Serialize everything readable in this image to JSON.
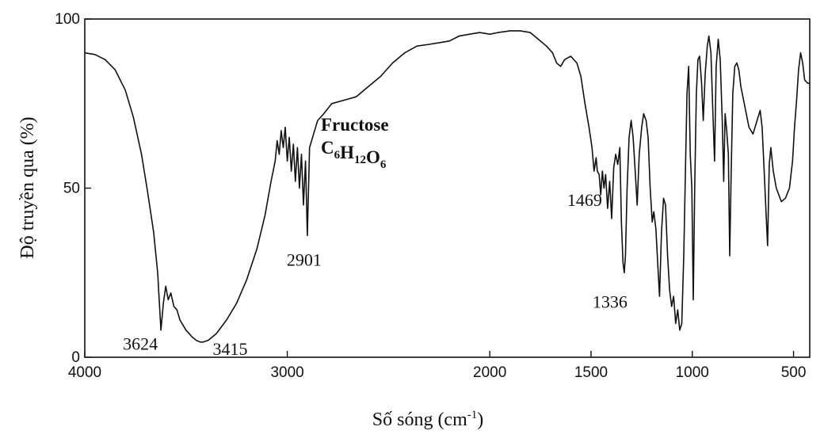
{
  "chart_data": {
    "type": "line",
    "title": "",
    "xlabel": "Số sóng (cm",
    "xlabel_sup": "-1",
    "xlabel_close": ")",
    "ylabel": "Độ truyền qua (%)",
    "xlim": [
      4000,
      420
    ],
    "ylim": [
      0,
      100
    ],
    "grid": false,
    "x_ticks": [
      {
        "value": 4000,
        "label": "4000"
      },
      {
        "value": 3000,
        "label": "3000"
      },
      {
        "value": 2000,
        "label": "2000"
      },
      {
        "value": 1500,
        "label": "1500"
      },
      {
        "value": 1000,
        "label": "1000"
      },
      {
        "value": 500,
        "label": "500"
      }
    ],
    "y_ticks": [
      {
        "value": 100,
        "label": "100"
      },
      {
        "value": 50,
        "label": "50"
      },
      {
        "value": 0,
        "label": "0"
      }
    ],
    "compound": {
      "name": "Fructose",
      "formula": [
        {
          "t": "C",
          "sub": "6"
        },
        {
          "t": "H",
          "sub": "12"
        },
        {
          "t": "O",
          "sub": "6"
        }
      ]
    },
    "annotations": [
      {
        "text": "3624",
        "x": 3624,
        "y": 6
      },
      {
        "text": "3415",
        "x": 3415,
        "y": 4
      },
      {
        "text": "2901",
        "x": 2901,
        "y": 36
      },
      {
        "text": "1469",
        "x": 1469,
        "y": 55
      },
      {
        "text": "1336",
        "x": 1336,
        "y": 25
      }
    ],
    "series": [
      {
        "values": [
          [
            4000,
            90
          ],
          [
            3950,
            89.5
          ],
          [
            3900,
            88
          ],
          [
            3850,
            85
          ],
          [
            3800,
            79
          ],
          [
            3760,
            71
          ],
          [
            3720,
            60
          ],
          [
            3690,
            49
          ],
          [
            3660,
            37
          ],
          [
            3640,
            25
          ],
          [
            3624,
            8
          ],
          [
            3612,
            16
          ],
          [
            3600,
            21
          ],
          [
            3588,
            17
          ],
          [
            3575,
            19
          ],
          [
            3560,
            15
          ],
          [
            3545,
            14
          ],
          [
            3530,
            11
          ],
          [
            3500,
            8
          ],
          [
            3470,
            6
          ],
          [
            3450,
            5
          ],
          [
            3430,
            4.5
          ],
          [
            3415,
            4.5
          ],
          [
            3390,
            5
          ],
          [
            3350,
            7
          ],
          [
            3300,
            11
          ],
          [
            3250,
            16
          ],
          [
            3200,
            23
          ],
          [
            3150,
            32
          ],
          [
            3110,
            42
          ],
          [
            3080,
            52
          ],
          [
            3060,
            58
          ],
          [
            3050,
            64
          ],
          [
            3040,
            60
          ],
          [
            3030,
            67
          ],
          [
            3020,
            62
          ],
          [
            3010,
            68
          ],
          [
            3000,
            58
          ],
          [
            2990,
            65
          ],
          [
            2980,
            55
          ],
          [
            2970,
            63
          ],
          [
            2960,
            52
          ],
          [
            2950,
            62
          ],
          [
            2940,
            50
          ],
          [
            2930,
            60
          ],
          [
            2920,
            45
          ],
          [
            2910,
            58
          ],
          [
            2901,
            36
          ],
          [
            2890,
            62
          ],
          [
            2870,
            66
          ],
          [
            2850,
            70
          ],
          [
            2820,
            72
          ],
          [
            2780,
            75
          ],
          [
            2720,
            76
          ],
          [
            2660,
            77
          ],
          [
            2600,
            80
          ],
          [
            2540,
            83
          ],
          [
            2480,
            87
          ],
          [
            2420,
            90
          ],
          [
            2360,
            92
          ],
          [
            2300,
            92.5
          ],
          [
            2250,
            93
          ],
          [
            2200,
            93.5
          ],
          [
            2150,
            95
          ],
          [
            2100,
            95.5
          ],
          [
            2050,
            96
          ],
          [
            2000,
            95.5
          ],
          [
            1960,
            96
          ],
          [
            1900,
            96.5
          ],
          [
            1850,
            96.5
          ],
          [
            1800,
            96
          ],
          [
            1760,
            94
          ],
          [
            1720,
            92
          ],
          [
            1690,
            90
          ],
          [
            1670,
            87
          ],
          [
            1650,
            86
          ],
          [
            1630,
            88
          ],
          [
            1600,
            89
          ],
          [
            1570,
            87
          ],
          [
            1550,
            83
          ],
          [
            1530,
            75
          ],
          [
            1510,
            68
          ],
          [
            1495,
            62
          ],
          [
            1485,
            55
          ],
          [
            1475,
            59
          ],
          [
            1469,
            55
          ],
          [
            1460,
            54
          ],
          [
            1452,
            48
          ],
          [
            1444,
            55
          ],
          [
            1436,
            50
          ],
          [
            1428,
            54
          ],
          [
            1418,
            44
          ],
          [
            1408,
            52
          ],
          [
            1398,
            41
          ],
          [
            1388,
            56
          ],
          [
            1378,
            60
          ],
          [
            1368,
            57
          ],
          [
            1358,
            62
          ],
          [
            1350,
            40
          ],
          [
            1342,
            28
          ],
          [
            1336,
            25
          ],
          [
            1330,
            30
          ],
          [
            1322,
            50
          ],
          [
            1312,
            65
          ],
          [
            1302,
            70
          ],
          [
            1292,
            65
          ],
          [
            1282,
            55
          ],
          [
            1272,
            45
          ],
          [
            1262,
            60
          ],
          [
            1250,
            68
          ],
          [
            1240,
            72
          ],
          [
            1228,
            70
          ],
          [
            1218,
            65
          ],
          [
            1208,
            50
          ],
          [
            1198,
            40
          ],
          [
            1190,
            43
          ],
          [
            1180,
            38
          ],
          [
            1170,
            27
          ],
          [
            1162,
            18
          ],
          [
            1152,
            37
          ],
          [
            1142,
            47
          ],
          [
            1132,
            45
          ],
          [
            1122,
            30
          ],
          [
            1112,
            20
          ],
          [
            1102,
            15
          ],
          [
            1092,
            18
          ],
          [
            1082,
            10
          ],
          [
            1072,
            14
          ],
          [
            1062,
            8
          ],
          [
            1052,
            10
          ],
          [
            1042,
            30
          ],
          [
            1034,
            55
          ],
          [
            1026,
            78
          ],
          [
            1018,
            86
          ],
          [
            1010,
            60
          ],
          [
            1002,
            50
          ],
          [
            995,
            17
          ],
          [
            988,
            50
          ],
          [
            980,
            78
          ],
          [
            972,
            88
          ],
          [
            964,
            89
          ],
          [
            954,
            81
          ],
          [
            946,
            70
          ],
          [
            936,
            84
          ],
          [
            926,
            92
          ],
          [
            918,
            95
          ],
          [
            908,
            90
          ],
          [
            898,
            72
          ],
          [
            890,
            58
          ],
          [
            882,
            86
          ],
          [
            872,
            94
          ],
          [
            862,
            88
          ],
          [
            852,
            70
          ],
          [
            845,
            52
          ],
          [
            838,
            72
          ],
          [
            830,
            67
          ],
          [
            822,
            60
          ],
          [
            815,
            30
          ],
          [
            808,
            54
          ],
          [
            800,
            78
          ],
          [
            790,
            86
          ],
          [
            780,
            87
          ],
          [
            770,
            85
          ],
          [
            760,
            80
          ],
          [
            740,
            74
          ],
          [
            720,
            68
          ],
          [
            700,
            66
          ],
          [
            680,
            70
          ],
          [
            665,
            73
          ],
          [
            655,
            68
          ],
          [
            645,
            55
          ],
          [
            635,
            42
          ],
          [
            628,
            33
          ],
          [
            620,
            57
          ],
          [
            612,
            62
          ],
          [
            600,
            55
          ],
          [
            585,
            50
          ],
          [
            560,
            46
          ],
          [
            540,
            47
          ],
          [
            520,
            50
          ],
          [
            505,
            58
          ],
          [
            495,
            68
          ],
          [
            485,
            76
          ],
          [
            475,
            85
          ],
          [
            465,
            90
          ],
          [
            455,
            87
          ],
          [
            445,
            82
          ],
          [
            430,
            81
          ],
          [
            420,
            81
          ]
        ]
      }
    ]
  }
}
